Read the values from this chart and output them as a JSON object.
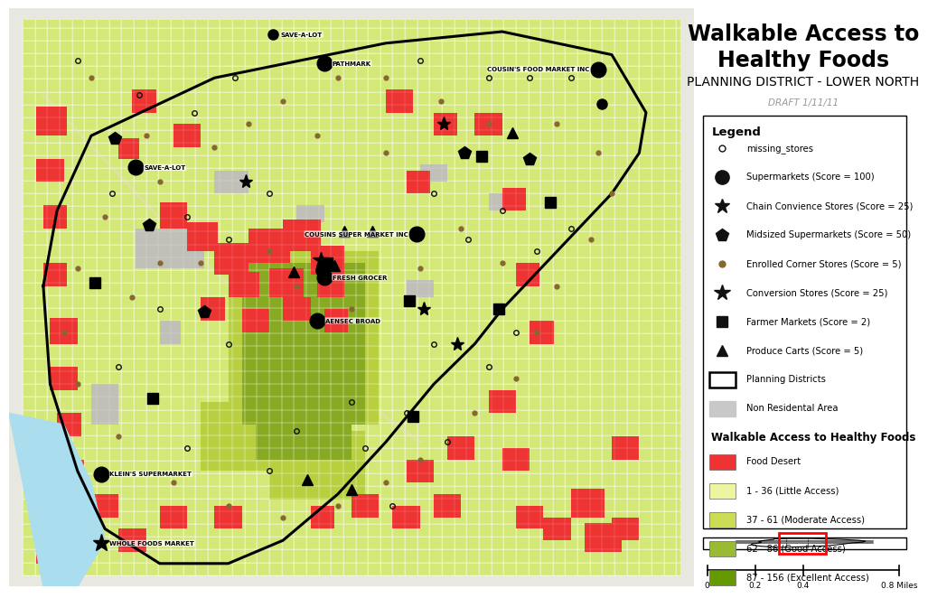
{
  "title": "Walkable Access to\nHealthy Foods",
  "subtitle": "PLANNING DISTRICT - LOWER NORTH",
  "draft_text": "DRAFT 1/11/11",
  "title_fontsize": 17,
  "subtitle_fontsize": 10,
  "legend_title": "Legend",
  "legend_items": [
    {
      "label": "missing_stores",
      "marker": "o",
      "size": 5,
      "color": "#111111",
      "filled": false
    },
    {
      "label": "Supermarkets (Score = 100)",
      "marker": "o",
      "size": 11,
      "color": "#111111",
      "filled": true
    },
    {
      "label": "Chain Convience Stores (Score = 25)",
      "marker": "*",
      "size": 12,
      "color": "#111111",
      "filled": true
    },
    {
      "label": "Midsized Supermarkets (Score = 50)",
      "marker": "p",
      "size": 11,
      "color": "#111111",
      "filled": true
    },
    {
      "label": "Enrolled Corner Stores (Score = 5)",
      "marker": "o",
      "size": 5,
      "color": "#886633",
      "filled": true
    },
    {
      "label": "Conversion Stores (Score = 25)",
      "marker": "*",
      "size": 14,
      "color": "#111111",
      "filled": true
    },
    {
      "label": "Farmer Markets (Score = 2)",
      "marker": "s",
      "size": 9,
      "color": "#111111",
      "filled": true
    },
    {
      "label": "Produce Carts (Score = 5)",
      "marker": "^",
      "size": 9,
      "color": "#111111",
      "filled": true
    }
  ],
  "walkable_title": "Walkable Access to Healthy Foods",
  "walkable_items": [
    {
      "label": "Food Desert",
      "color": "#ee3333"
    },
    {
      "label": "1 - 36 (Little Access)",
      "color": "#eef5a0"
    },
    {
      "label": "37 - 61 (Moderate Access)",
      "color": "#ccdd55"
    },
    {
      "label": "62 - 86 (Good Access)",
      "color": "#99bb33"
    },
    {
      "label": "87 - 156 (Excellent Access)",
      "color": "#669900"
    }
  ],
  "map_bg": "#e8e8e0",
  "panel_bg": "white",
  "scalebar_ticks": [
    "0",
    "0.2",
    "0.4",
    "0.8 Miles"
  ],
  "map_base_color": "#d8e870",
  "map_moderate_color": "#b8d040",
  "map_good_color": "#88aa22",
  "water_color": "#aaddee",
  "gray_color": "#c0c0b8",
  "road_color": "#ffffff",
  "desert_color": "#ee3333"
}
